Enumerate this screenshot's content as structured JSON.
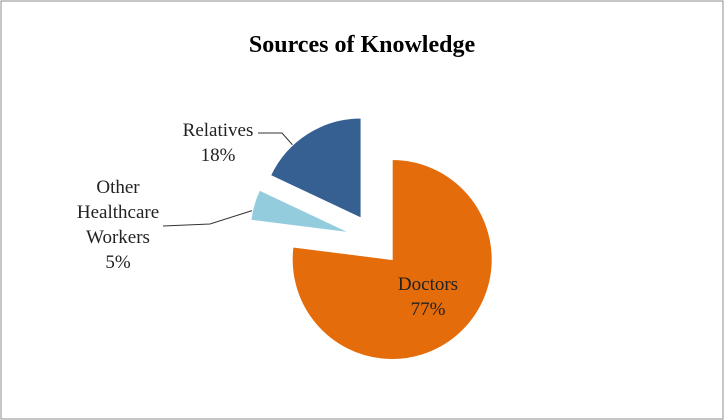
{
  "chart_data": {
    "type": "pie",
    "title": "Sources of Knowledge",
    "categories": [
      "Doctors",
      "Other Healthcare Workers",
      "Relatives"
    ],
    "values": [
      77,
      5,
      18
    ],
    "value_labels": [
      "77%",
      "5%",
      "18%"
    ],
    "colors": [
      "#e46c0a",
      "#93cddd",
      "#376092"
    ],
    "exploded": true
  }
}
